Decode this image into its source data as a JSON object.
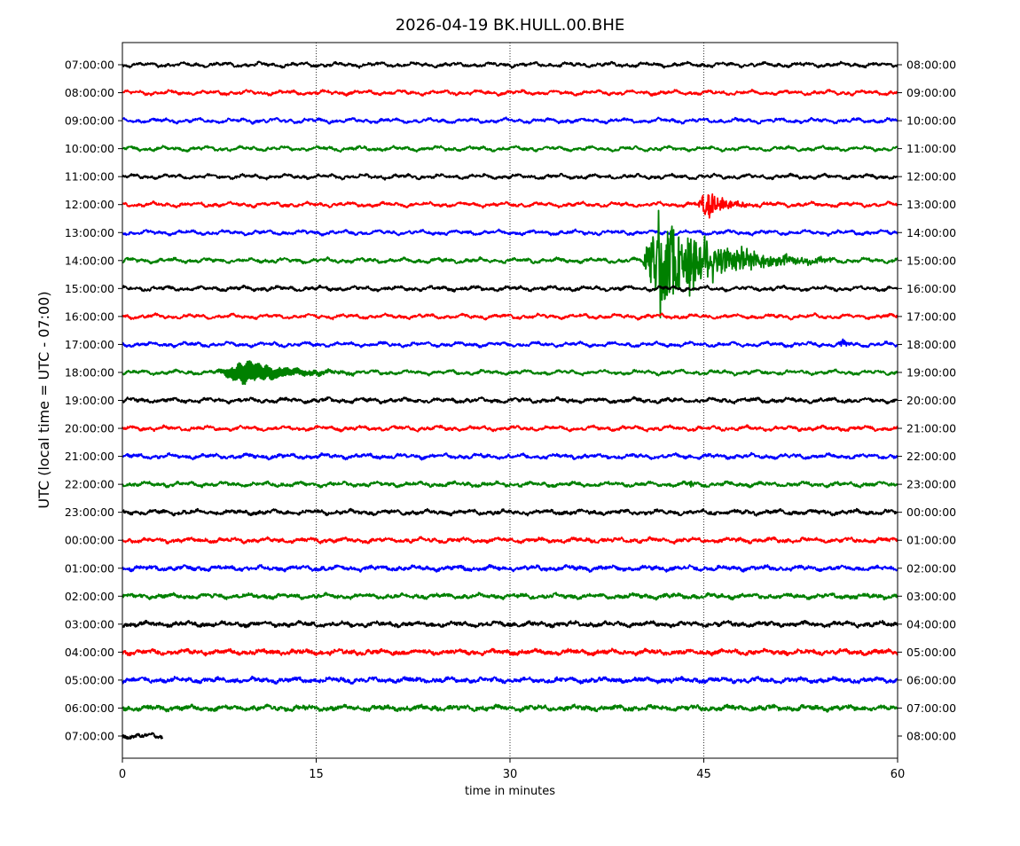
{
  "chart_data": {
    "type": "line",
    "title": "2026-04-19 BK.HULL.00.BHE",
    "xlabel": "time in minutes",
    "ylabel": "UTC (local time = UTC - 07:00)",
    "xlim": [
      0,
      60
    ],
    "xticks": [
      0,
      15,
      30,
      45,
      60
    ],
    "grid": "vertical dotted lines at x ticks",
    "colors": [
      "#000000",
      "#ff0000",
      "#0000ff",
      "#008000"
    ],
    "left_labels": [
      "07:00:00",
      "08:00:00",
      "09:00:00",
      "10:00:00",
      "11:00:00",
      "12:00:00",
      "13:00:00",
      "14:00:00",
      "15:00:00",
      "16:00:00",
      "17:00:00",
      "18:00:00",
      "19:00:00",
      "20:00:00",
      "21:00:00",
      "22:00:00",
      "23:00:00",
      "00:00:00",
      "01:00:00",
      "02:00:00",
      "03:00:00",
      "04:00:00",
      "05:00:00",
      "06:00:00",
      "07:00:00"
    ],
    "right_labels": [
      "08:00:00",
      "09:00:00",
      "10:00:00",
      "11:00:00",
      "12:00:00",
      "13:00:00",
      "14:00:00",
      "15:00:00",
      "16:00:00",
      "17:00:00",
      "18:00:00",
      "19:00:00",
      "20:00:00",
      "21:00:00",
      "22:00:00",
      "23:00:00",
      "00:00:00",
      "01:00:00",
      "02:00:00",
      "03:00:00",
      "04:00:00",
      "05:00:00",
      "06:00:00",
      "07:00:00",
      "08:00:00"
    ],
    "noise_level": [
      1,
      1,
      1,
      1,
      1,
      1,
      1,
      1.1,
      1.1,
      1,
      1,
      1,
      1.2,
      1.1,
      1.2,
      1.2,
      1.3,
      1.3,
      1.4,
      1.4,
      1.5,
      1.6,
      1.6,
      1.7,
      1.5
    ],
    "last_row_end_minute": 3.1,
    "events": [
      {
        "row": 5,
        "start_min": 44.5,
        "peak_min": 45.3,
        "end_min": 50,
        "amplitude": 0.5
      },
      {
        "row": 7,
        "start_min": 40.2,
        "peak_min": 41.7,
        "end_min": 55,
        "amplitude": 1.6
      },
      {
        "row": 11,
        "start_min": 7.3,
        "peak_min": 9.5,
        "end_min": 19.5,
        "amplitude": 0.4,
        "monochromatic": true
      },
      {
        "row": 10,
        "start_min": 55.3,
        "peak_min": 55.7,
        "end_min": 57,
        "amplitude": 0.15
      },
      {
        "row": 15,
        "start_min": 43.8,
        "peak_min": 44,
        "end_min": 44.6,
        "amplitude": 0.15
      }
    ]
  }
}
